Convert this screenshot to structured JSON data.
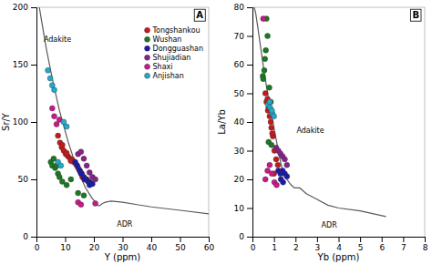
{
  "chart_data": [
    {
      "type": "scatter",
      "title": "A",
      "x_label": "Y (ppm)",
      "y_label": "Sr/Y",
      "xlim": [
        0,
        60
      ],
      "ylim": [
        0,
        200
      ],
      "xticks": [
        0,
        10,
        20,
        30,
        40,
        50,
        60
      ],
      "yticks": [
        0,
        50,
        100,
        150,
        200
      ],
      "legend": "upper right",
      "annotations": [
        {
          "text": "Adakite",
          "x": 2.5,
          "y": 172
        },
        {
          "text": "ADR",
          "x": 28,
          "y": 11
        }
      ],
      "series": [
        {
          "name": "Tongshankou",
          "color": "#c8191a",
          "x": [
            7.5,
            8.2,
            8.8,
            9.5,
            10.2,
            11.0,
            11.8,
            12.5,
            13.0,
            13.8,
            14.5,
            15.2,
            16.0,
            16.8,
            17.5,
            18.2,
            9.0,
            10.5,
            12.0
          ],
          "values": [
            88,
            82,
            78,
            75,
            72,
            70,
            68,
            67,
            65,
            63,
            60,
            57,
            52,
            50,
            50,
            48,
            80,
            73,
            66
          ]
        },
        {
          "name": "Wushan",
          "color": "#1a7a20",
          "x": [
            5.0,
            5.5,
            6.0,
            6.5,
            7.0,
            7.5,
            8.0,
            9.0,
            10.5,
            12.0,
            14.5,
            16.5
          ],
          "values": [
            65,
            62,
            68,
            60,
            62,
            55,
            52,
            48,
            45,
            50,
            38,
            36
          ]
        },
        {
          "name": "Dongguashan",
          "color": "#1a1aaa",
          "x": [
            13.5,
            14.2,
            15.0,
            15.8,
            16.5,
            17.2,
            18.0,
            18.8,
            19.5,
            15.5,
            16.8,
            18.5
          ],
          "values": [
            65,
            62,
            58,
            55,
            52,
            50,
            48,
            47,
            46,
            55,
            50,
            45
          ]
        },
        {
          "name": "Shujiadian",
          "color": "#882288",
          "x": [
            14.5,
            15.5,
            16.5,
            17.5,
            18.5,
            19.5,
            20.5
          ],
          "values": [
            72,
            74,
            68,
            62,
            56,
            52,
            50
          ]
        },
        {
          "name": "Shaxi",
          "color": "#c8198a",
          "x": [
            5.5,
            6.2,
            7.0,
            8.0,
            14.5,
            15.5,
            20.5
          ],
          "values": [
            112,
            105,
            98,
            102,
            30,
            28,
            29
          ]
        },
        {
          "name": "Anjishan",
          "color": "#20aacc",
          "x": [
            4.0,
            4.8,
            5.5,
            6.2,
            7.5,
            8.5,
            9.5,
            10.5
          ],
          "values": [
            145,
            138,
            132,
            128,
            65,
            62,
            100,
            96
          ]
        },
        {
          "type": "line",
          "color": "#5a5a5a",
          "x": [
            1.0,
            2.0,
            3.5,
            5.5,
            8.0,
            11.0,
            14.0,
            17.0,
            19.5,
            21.0,
            21.5,
            22.0,
            22.5,
            23.0,
            24.0,
            26.0,
            30.0,
            35.0,
            40.0,
            50.0,
            60.0
          ],
          "values": [
            200,
            185,
            163,
            138,
            110,
            83,
            60,
            43,
            33,
            29,
            27,
            27,
            28,
            29,
            30,
            31,
            30,
            28,
            26,
            23,
            20
          ]
        }
      ]
    },
    {
      "type": "scatter",
      "title": "B",
      "x_label": "Yb (ppm)",
      "y_label": "La/Yb",
      "xlim": [
        0,
        8
      ],
      "ylim": [
        0,
        80
      ],
      "xticks": [
        0,
        1,
        2,
        3,
        4,
        5,
        6,
        7,
        8
      ],
      "yticks": [
        0,
        10,
        20,
        30,
        40,
        50,
        60,
        70,
        80
      ],
      "annotations": [
        {
          "text": "Adakite",
          "x": 2.05,
          "y": 37
        },
        {
          "text": "ADR",
          "x": 3.2,
          "y": 4
        }
      ],
      "series": [
        {
          "name": "Tongshankou",
          "color": "#c8191a",
          "x": [
            0.65,
            0.72,
            0.8,
            0.88,
            0.95,
            1.02,
            1.1,
            1.18,
            0.75,
            0.85,
            0.92,
            1.0,
            0.6,
            0.7
          ],
          "values": [
            47,
            44,
            42,
            38,
            35,
            30,
            27,
            25,
            45,
            40,
            36,
            22,
            50,
            48
          ]
        },
        {
          "name": "Wushan",
          "color": "#1a7a20",
          "x": [
            0.48,
            0.55,
            0.62,
            0.7,
            0.78,
            0.85,
            0.65,
            0.75,
            0.88,
            0.5,
            0.58
          ],
          "values": [
            56,
            58,
            65,
            70,
            52,
            47,
            76,
            33,
            32,
            55,
            62
          ]
        },
        {
          "name": "Dongguashan",
          "color": "#1a1aaa",
          "x": [
            1.2,
            1.3,
            1.4,
            1.5,
            1.6,
            1.32,
            1.42
          ],
          "values": [
            23,
            22,
            23,
            22,
            21,
            20,
            19
          ]
        },
        {
          "name": "Shujiadian",
          "color": "#882288",
          "x": [
            1.1,
            1.2,
            1.3,
            1.4,
            1.5,
            1.6
          ],
          "values": [
            31,
            30,
            29,
            28,
            27,
            25
          ]
        },
        {
          "name": "Shaxi",
          "color": "#c8198a",
          "x": [
            0.6,
            0.7,
            0.8,
            0.9,
            1.02,
            1.12,
            0.5
          ],
          "values": [
            20,
            23,
            25,
            22,
            19,
            18,
            76
          ]
        },
        {
          "name": "Anjishan",
          "color": "#20aacc",
          "x": [
            0.72,
            0.82,
            0.92,
            1.0,
            0.8,
            0.9
          ],
          "values": [
            46,
            45,
            43,
            42,
            47,
            44
          ]
        },
        {
          "type": "line",
          "color": "#5a5a5a",
          "x": [
            0.08,
            0.15,
            0.25,
            0.38,
            0.55,
            0.75,
            0.95,
            1.1,
            1.25,
            1.4,
            1.6,
            1.8,
            1.95,
            2.0,
            2.1,
            2.2,
            2.5,
            3.0,
            3.5,
            4.0,
            5.0,
            6.2
          ],
          "values": [
            80,
            78,
            73,
            66,
            57,
            48,
            40,
            34,
            28,
            23,
            20,
            18,
            17,
            17,
            17,
            17,
            15,
            13,
            11,
            10,
            9,
            7
          ]
        }
      ]
    }
  ]
}
